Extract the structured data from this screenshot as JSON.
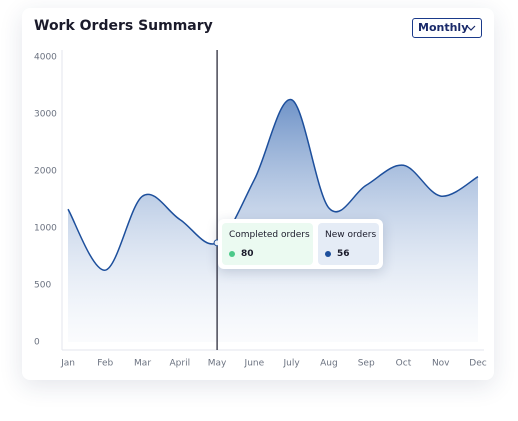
{
  "header": {
    "title": "Work Orders Summary",
    "period": "Monthly"
  },
  "chart_data": {
    "type": "area",
    "color": "#1d4f9c",
    "categories": [
      "Jan",
      "Feb",
      "Mar",
      "April",
      "May",
      "June",
      "July",
      "Aug",
      "Sep",
      "Oct",
      "Nov",
      "Dec"
    ],
    "values": [
      1330,
      630,
      1560,
      1150,
      870,
      1850,
      3250,
      1350,
      1750,
      2100,
      1560,
      1900
    ],
    "yticks": [
      0,
      500,
      1000,
      2000,
      3000,
      4000
    ]
  },
  "tooltip": {
    "items": [
      {
        "label": "Completed orders",
        "value": 80,
        "color": "#4cc98a"
      },
      {
        "label": "New orders",
        "value": 56,
        "color": "#1d4f9c"
      }
    ]
  }
}
